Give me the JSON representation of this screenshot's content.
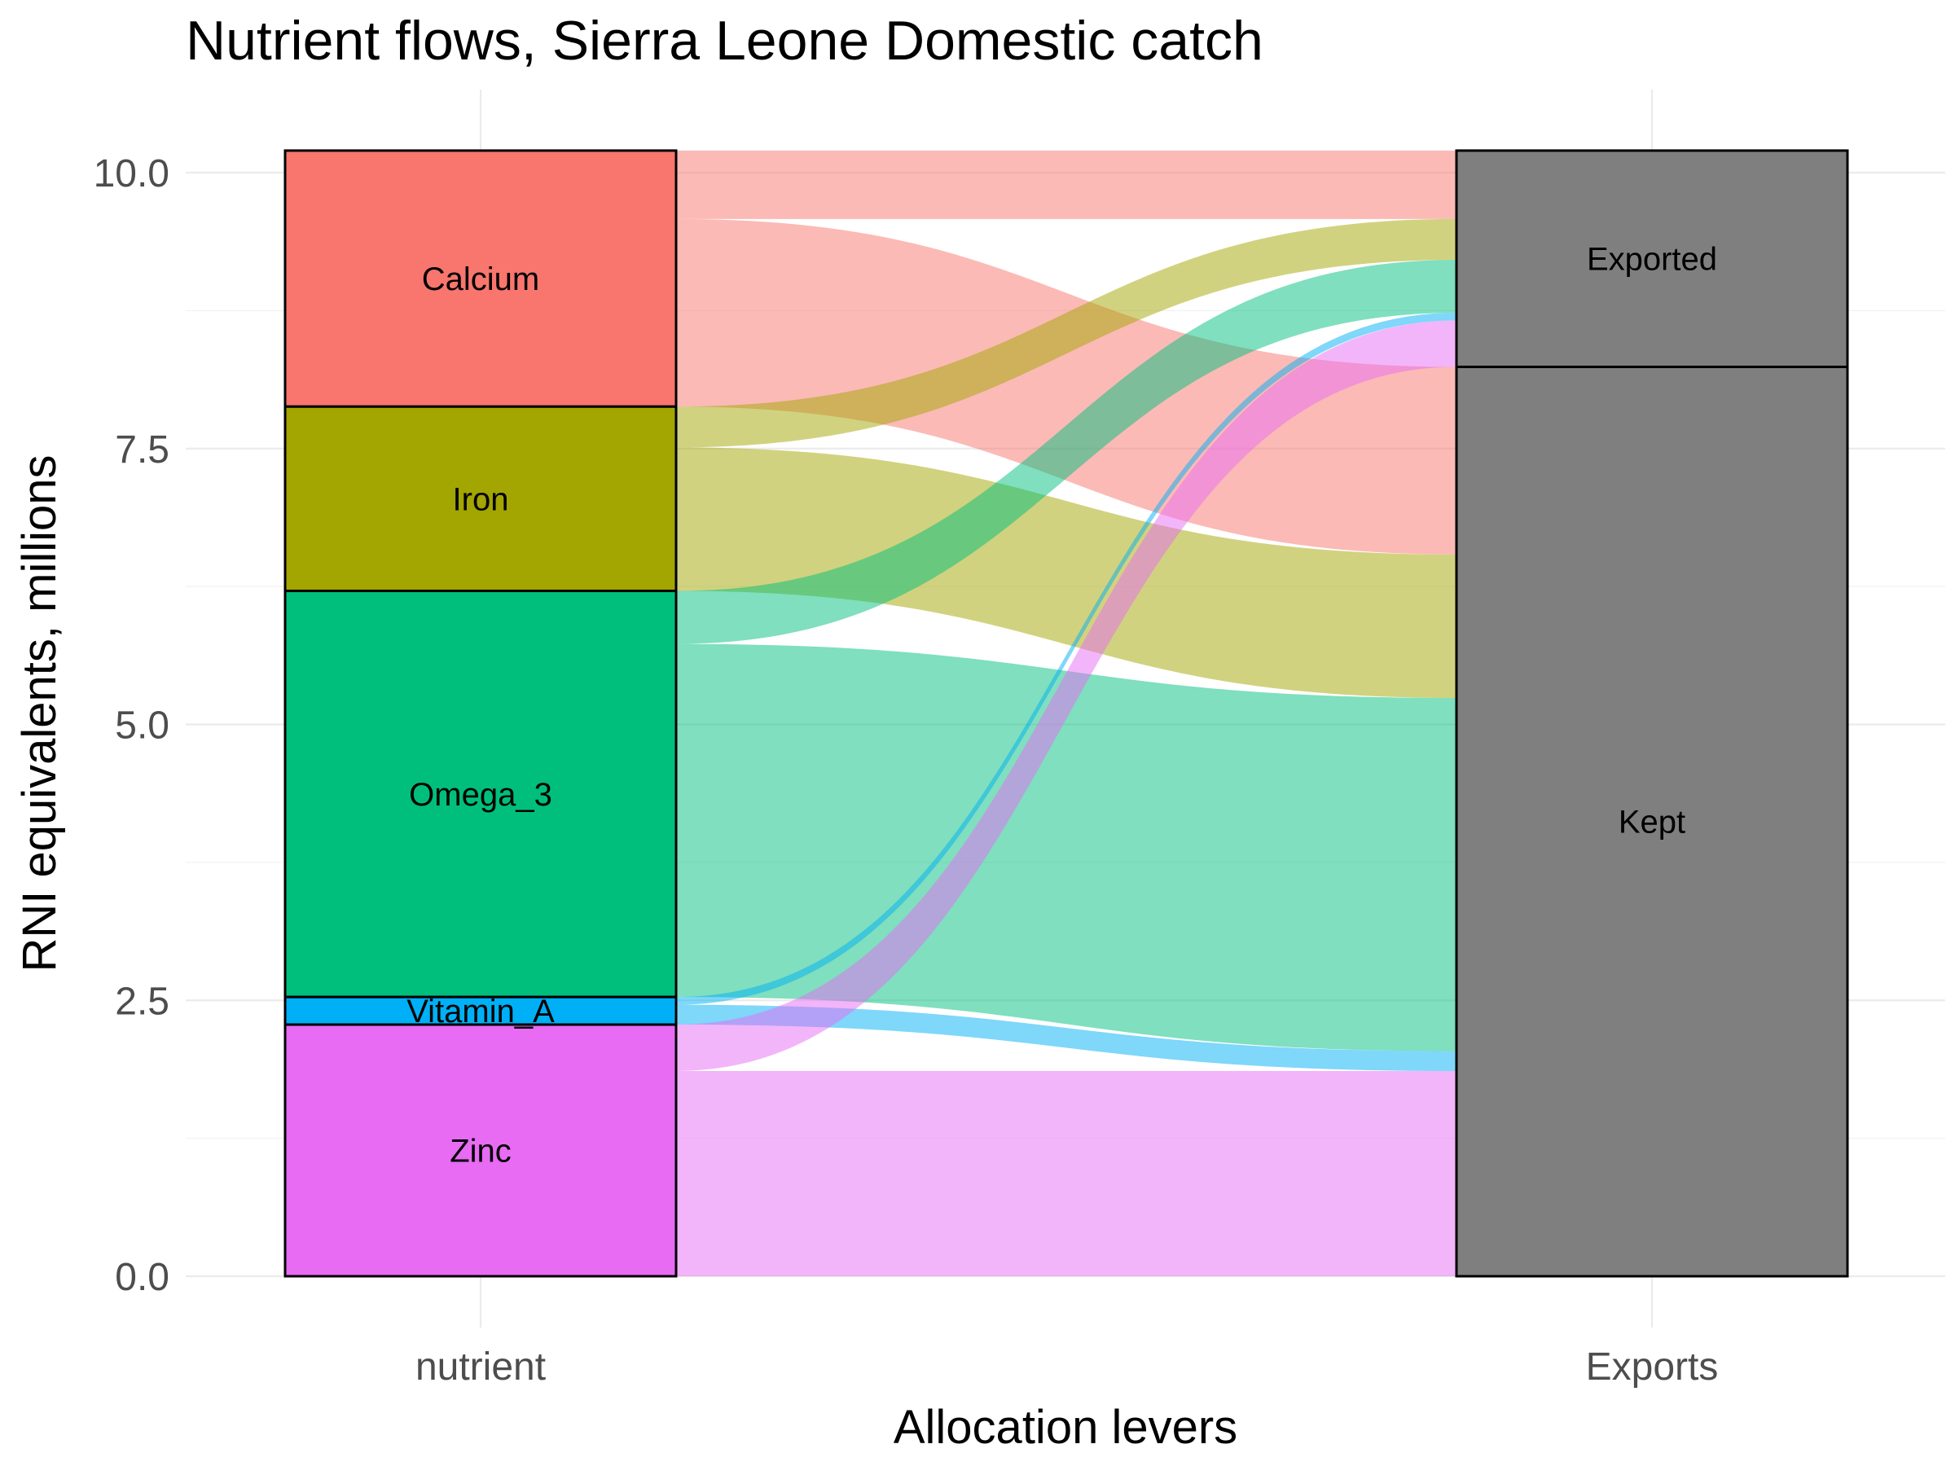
{
  "chart_data": {
    "type": "alluvial",
    "title": "Nutrient flows, Sierra Leone Domestic catch",
    "xlabel": "Allocation levers",
    "ylabel": "RNI equivalents, millions",
    "ylim": [
      0,
      10.2
    ],
    "y_ticks": [
      "0.0",
      "2.5",
      "5.0",
      "7.5",
      "10.0"
    ],
    "x_axes": [
      "nutrient",
      "Exports"
    ],
    "grid": true,
    "legend": "none",
    "flow_alpha": 0.5,
    "nutrient_order_top_to_bottom": [
      "Calcium",
      "Iron",
      "Omega_3",
      "Vitamin_A",
      "Zinc"
    ],
    "exports_order_top_to_bottom": [
      "Exported",
      "Kept"
    ],
    "nutrients": [
      {
        "name": "Calcium",
        "color": "#F8766D",
        "exported": 0.62,
        "kept": 1.7
      },
      {
        "name": "Iron",
        "color": "#A3A500",
        "exported": 0.37,
        "kept": 1.3
      },
      {
        "name": "Omega_3",
        "color": "#00BF7D",
        "exported": 0.48,
        "kept": 3.2
      },
      {
        "name": "Vitamin_A",
        "color": "#00B0F6",
        "exported": 0.07,
        "kept": 0.18
      },
      {
        "name": "Zinc",
        "color": "#E76BF3",
        "exported": 0.42,
        "kept": 1.86
      }
    ],
    "exports": [
      {
        "name": "Exported",
        "color": "#7F7F7F",
        "value": 1.96
      },
      {
        "name": "Kept",
        "color": "#7F7F7F",
        "value": 8.24
      }
    ]
  }
}
